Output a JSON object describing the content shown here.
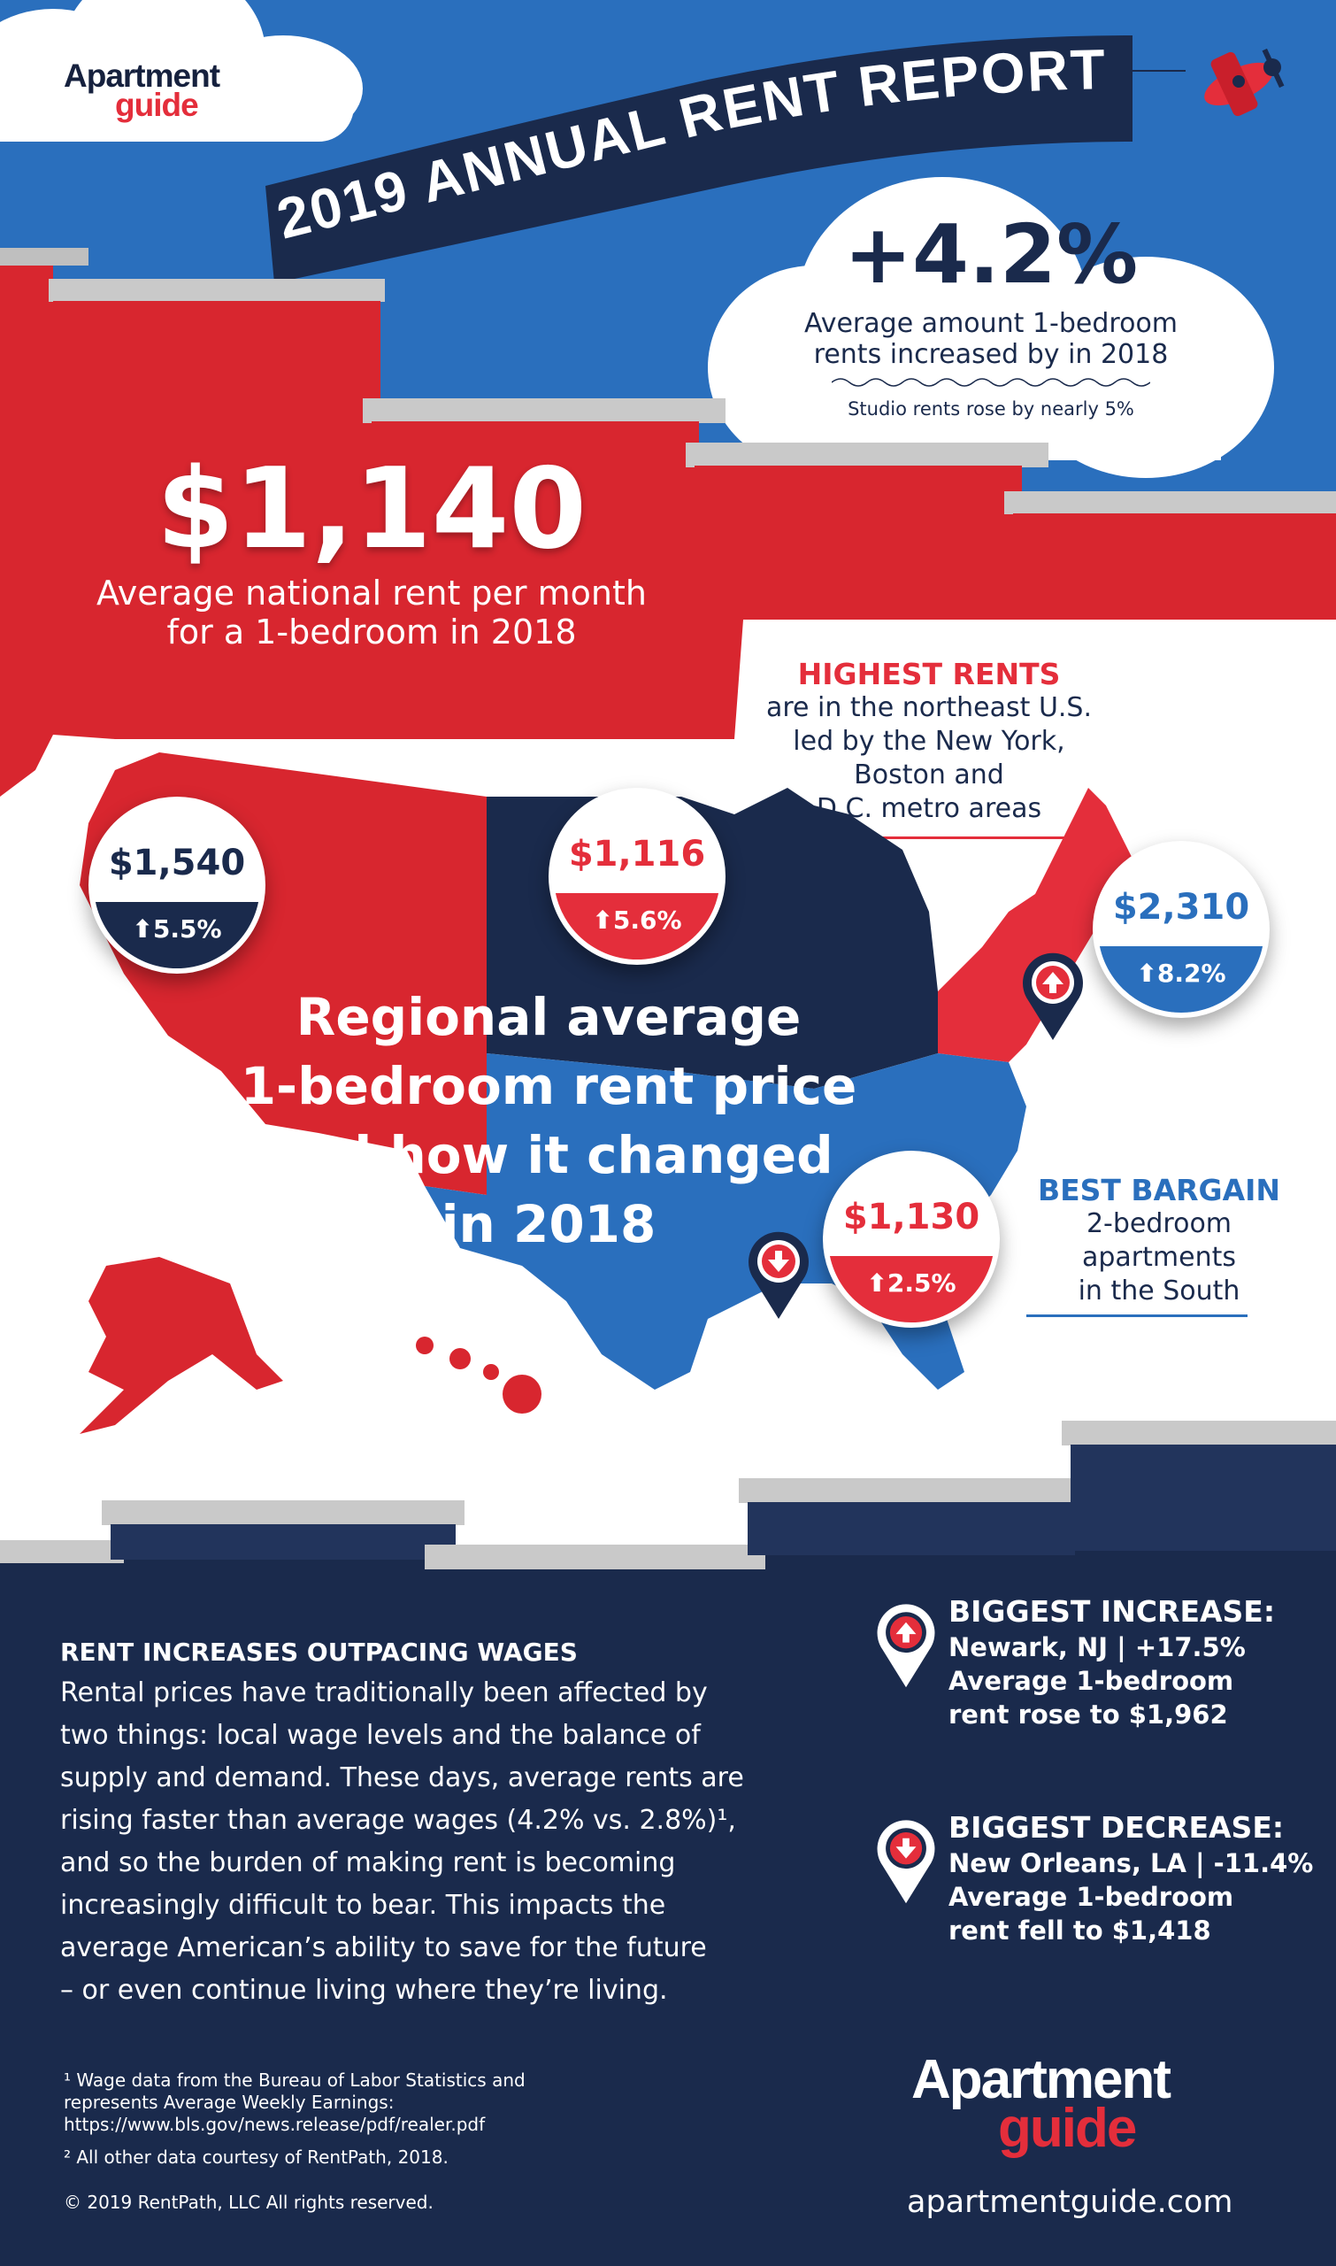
{
  "brand": {
    "logo_line1": "Apartment",
    "logo_line2": "guide",
    "website": "apartmentguide.com"
  },
  "banner": {
    "title": "2019 ANNUAL RENT REPORT"
  },
  "headline_stat": {
    "value": "+4.2%",
    "caption_line1": "Average amount 1-bedroom",
    "caption_line2": "rents increased by in 2018",
    "note": "Studio rents rose by nearly 5%"
  },
  "national_rent": {
    "value": "$1,140",
    "caption_line1": "Average national rent per month",
    "caption_line2": "for a 1-bedroom in 2018"
  },
  "highest_rents": {
    "title": "HIGHEST RENTS",
    "line1": "are in the northeast U.S.",
    "line2": "led by the New York,",
    "line3": "Boston and",
    "line4": "D.C. metro areas"
  },
  "map_title": {
    "line1": "Regional average",
    "line2": "1-bedroom rent price",
    "line3": "and how it changed",
    "line4": "in 2018"
  },
  "regions": [
    {
      "id": "west",
      "price": "$1,540",
      "change": "5.5%"
    },
    {
      "id": "midwest",
      "price": "$1,116",
      "change": "5.6%"
    },
    {
      "id": "northeast",
      "price": "$2,310",
      "change": "8.2%"
    },
    {
      "id": "south",
      "price": "$1,130",
      "change": "2.5%"
    }
  ],
  "best_bargain": {
    "title": "BEST BARGAIN",
    "line1": "2-bedroom",
    "line2": "apartments",
    "line3": "in the South"
  },
  "wages": {
    "heading": "RENT INCREASES OUTPACING WAGES",
    "lines": [
      "Rental prices have traditionally been affected by",
      "two things: local wage levels and the balance of",
      "supply and demand. These days, average rents are",
      "rising faster than average wages (4.2% vs. 2.8%)¹,",
      "and so the burden of making rent is becoming",
      "increasingly difficult to bear. This impacts the",
      "average American’s ability to save for the future",
      "– or even continue living where they’re living."
    ]
  },
  "biggest_increase": {
    "title": "BIGGEST INCREASE:",
    "line1": "Newark, NJ | +17.5%",
    "line2": "Average 1-bedroom",
    "line3": "rent rose to $1,962"
  },
  "biggest_decrease": {
    "title": "BIGGEST DECREASE:",
    "line1": "New Orleans, LA | -11.4%",
    "line2": "Average 1-bedroom",
    "line3": "rent fell to $1,418"
  },
  "footnotes": {
    "note1_line1": "¹ Wage data from the Bureau of Labor Statistics and",
    "note1_line2": "represents Average Weekly Earnings:",
    "note1_line3": "https://www.bls.gov/news.release/pdf/realer.pdf",
    "note2": "² All other data courtesy of RentPath, 2018.",
    "copyright": "© 2019 RentPath, LLC  All rights reserved."
  },
  "colors": {
    "sky_blue": "#2a6fbd",
    "brand_red": "#e42e3b",
    "building_red": "#d8262f",
    "navy": "#1a2a4c",
    "south_blue": "#2a6fbd",
    "white": "#ffffff"
  },
  "icons": {
    "airplane": "airplane-icon",
    "up_arrow": "arrow-up-icon",
    "down_arrow": "arrow-down-icon",
    "map_pin": "map-pin-icon"
  }
}
